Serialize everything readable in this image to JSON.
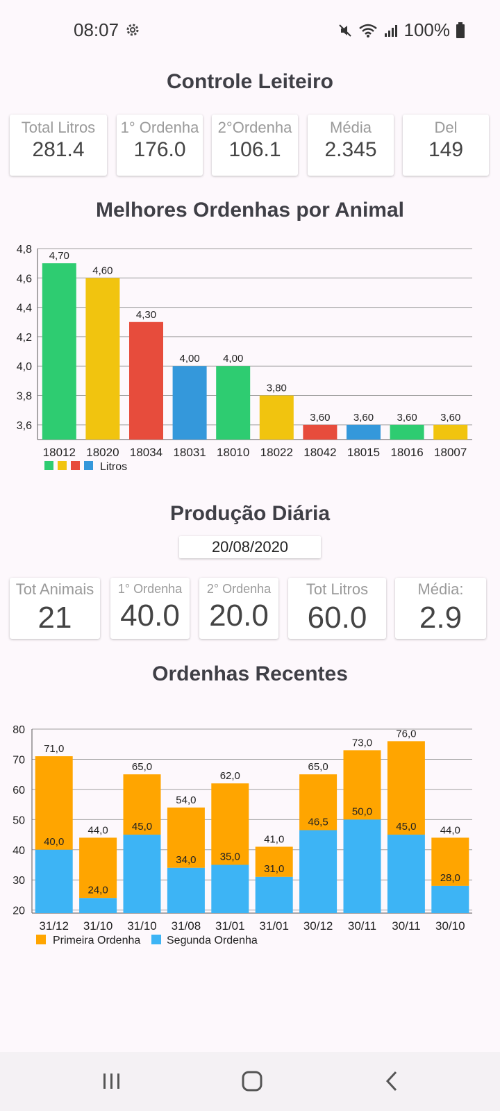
{
  "status": {
    "time": "08:07",
    "battery": "100%"
  },
  "summary": {
    "title": "Controle Leiteiro",
    "cards": [
      {
        "label": "Total Litros",
        "value": "281.4"
      },
      {
        "label": "1° Ordenha",
        "value": "176.0"
      },
      {
        "label": "2°Ordenha",
        "value": "106.1"
      },
      {
        "label": "Média",
        "value": "2.345"
      },
      {
        "label": "Del",
        "value": "149"
      }
    ]
  },
  "best_chart_title": "Melhores Ordenhas por Animal",
  "daily": {
    "title": "Produção Diária",
    "date": "20/08/2020",
    "cards": [
      {
        "label": "Tot Animais",
        "value": "21"
      },
      {
        "label": "1° Ordenha",
        "value": "40.0"
      },
      {
        "label": "2° Ordenha",
        "value": "20.0"
      },
      {
        "label": "Tot Litros",
        "value": "60.0"
      },
      {
        "label": "Média:",
        "value": "2.9"
      }
    ]
  },
  "recent_chart_title": "Ordenhas Recentes",
  "colors": {
    "green": "#2ecc71",
    "yellow": "#f1c40f",
    "red": "#e74c3c",
    "blue": "#3498db",
    "orange": "#ffa500",
    "lightblue": "#3db4f5"
  },
  "chart_data": [
    {
      "type": "bar",
      "categories": [
        "18012",
        "18020",
        "18034",
        "18031",
        "18010",
        "18022",
        "18042",
        "18015",
        "18016",
        "18007"
      ],
      "series": [
        {
          "name": "Litros",
          "values": [
            4.7,
            4.6,
            4.3,
            4.0,
            4.0,
            3.8,
            3.6,
            3.6,
            3.6,
            3.6
          ]
        }
      ],
      "data_labels": [
        "4,70",
        "4,60",
        "4,30",
        "4,00",
        "4,00",
        "3,80",
        "3,60",
        "3,60",
        "3,60",
        "3,60"
      ],
      "y_ticks": [
        "3,6",
        "3,8",
        "4,0",
        "4,2",
        "4,4",
        "4,6",
        "4,8"
      ],
      "ylim": [
        3.5,
        4.8
      ],
      "bar_colors": [
        "#2ecc71",
        "#f1c40f",
        "#e74c3c",
        "#3498db",
        "#2ecc71",
        "#f1c40f",
        "#e74c3c",
        "#3498db",
        "#2ecc71",
        "#f1c40f"
      ],
      "legend_swatches": [
        "#2ecc71",
        "#f1c40f",
        "#e74c3c",
        "#3498db"
      ],
      "legend": "bottom-left",
      "grid": true
    },
    {
      "type": "bar",
      "stacked": true,
      "categories": [
        "31/12",
        "31/10",
        "31/10",
        "31/08",
        "31/01",
        "31/01",
        "30/12",
        "30/11",
        "30/11",
        "30/10"
      ],
      "series": [
        {
          "name": "Segunda Ordenha",
          "values": [
            40.0,
            24.0,
            45.0,
            34.0,
            35.0,
            31.0,
            46.5,
            50.0,
            45.0,
            28.0
          ],
          "labels": [
            "40,0",
            "24,0",
            "45,0",
            "34,0",
            "35,0",
            "31,0",
            "46,5",
            "50,0",
            "45,0",
            "28,0"
          ]
        },
        {
          "name": "Primeira Ordenha",
          "totals": [
            71.0,
            44.0,
            65.0,
            54.0,
            62.0,
            41.0,
            65.0,
            73.0,
            76.0,
            44.0
          ],
          "labels": [
            "71,0",
            "44,0",
            "65,0",
            "54,0",
            "62,0",
            "41,0",
            "65,0",
            "73,0",
            "76,0",
            "44,0"
          ]
        }
      ],
      "y_ticks": [
        "20",
        "30",
        "40",
        "50",
        "60",
        "70",
        "80"
      ],
      "ylim": [
        19,
        80
      ],
      "legend": "bottom-left",
      "grid": true
    }
  ]
}
